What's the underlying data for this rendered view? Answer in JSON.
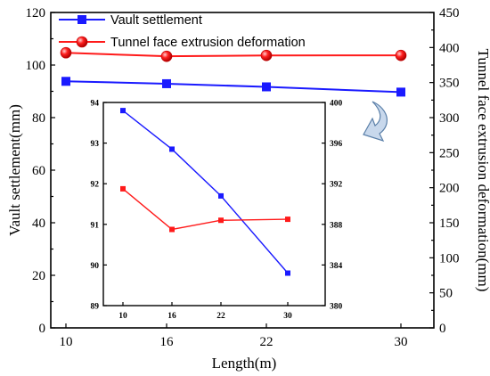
{
  "chart_data": [
    {
      "type": "line",
      "x": [
        10,
        16,
        22,
        30
      ],
      "xlabel": "Length(m)",
      "ylabel_left": "Vault settlement(mm)",
      "ylabel_right": "Tunnel face extrusion deformation(mm)",
      "xticks": [
        "10",
        "16",
        "22",
        "30"
      ],
      "ylim_left": [
        0,
        120
      ],
      "yticks_left": [
        "0",
        "20",
        "40",
        "60",
        "80",
        "100",
        "120"
      ],
      "ylim_right": [
        0,
        450
      ],
      "yticks_right": [
        "0",
        "50",
        "100",
        "150",
        "200",
        "250",
        "300",
        "350",
        "400",
        "450"
      ],
      "legend_position": "top-left",
      "series": [
        {
          "name": "Vault settlement",
          "axis": "left",
          "marker": "square",
          "color": "#1a1aff",
          "values": [
            93.8,
            92.9,
            91.7,
            89.7
          ]
        },
        {
          "name": "Tunnel face extrusion deformation",
          "axis": "right",
          "marker": "circle",
          "color": "#ff1a1a",
          "values": [
            392.5,
            387.5,
            388.7,
            388.8
          ]
        }
      ]
    },
    {
      "type": "line",
      "inset": true,
      "x": [
        10,
        16,
        22,
        30
      ],
      "xticks": [
        "10",
        "16",
        "22",
        "30"
      ],
      "ylim_left": [
        89,
        94
      ],
      "yticks_left": [
        "89",
        "90",
        "91",
        "92",
        "93",
        "94"
      ],
      "ylim_right": [
        380,
        400
      ],
      "yticks_right": [
        "380",
        "384",
        "388",
        "392",
        "396",
        "400"
      ],
      "series": [
        {
          "name": "Vault settlement",
          "axis": "left",
          "marker": "square",
          "color": "#1a1aff",
          "values": [
            93.8,
            92.85,
            91.7,
            89.8
          ]
        },
        {
          "name": "Tunnel face extrusion deformation",
          "axis": "right",
          "marker": "square",
          "color": "#ff1a1a",
          "values": [
            391.5,
            387.5,
            388.4,
            388.5
          ]
        }
      ]
    }
  ]
}
